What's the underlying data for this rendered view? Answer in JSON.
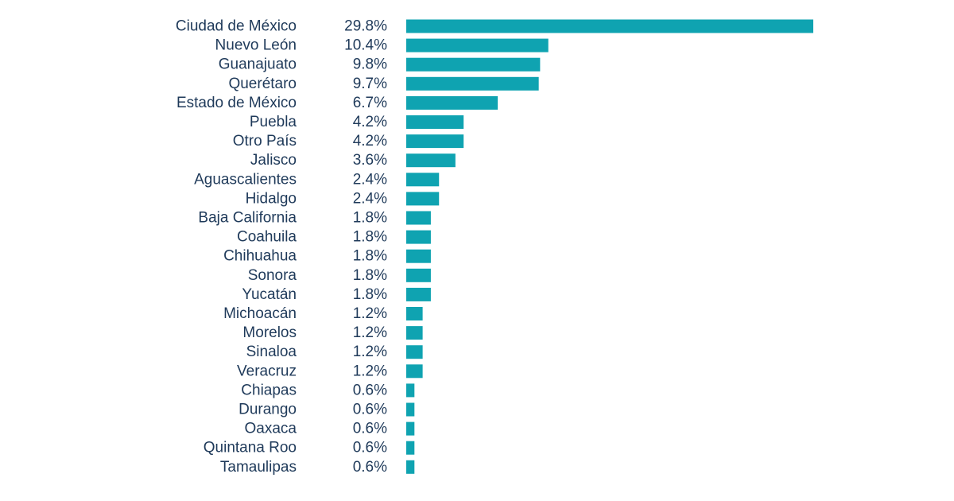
{
  "chart_data": {
    "type": "bar",
    "orientation": "horizontal",
    "categories": [
      "Ciudad de México",
      "Nuevo León",
      "Guanajuato",
      "Querétaro",
      "Estado de México",
      "Puebla",
      "Otro País",
      "Jalisco",
      "Aguascalientes",
      "Hidalgo",
      "Baja California",
      "Coahuila",
      "Chihuahua",
      "Sonora",
      "Yucatán",
      "Michoacán",
      "Morelos",
      "Sinaloa",
      "Veracruz",
      "Chiapas",
      "Durango",
      "Oaxaca",
      "Quintana Roo",
      "Tamaulipas"
    ],
    "values": [
      29.8,
      10.4,
      9.8,
      9.7,
      6.7,
      4.2,
      4.2,
      3.6,
      2.4,
      2.4,
      1.8,
      1.8,
      1.8,
      1.8,
      1.8,
      1.2,
      1.2,
      1.2,
      1.2,
      0.6,
      0.6,
      0.6,
      0.6,
      0.6
    ],
    "value_labels": [
      "29.8%",
      "10.4%",
      "9.8%",
      "9.7%",
      "6.7%",
      "4.2%",
      "4.2%",
      "3.6%",
      "2.4%",
      "2.4%",
      "1.8%",
      "1.8%",
      "1.8%",
      "1.8%",
      "1.8%",
      "1.2%",
      "1.2%",
      "1.2%",
      "1.2%",
      "0.6%",
      "0.6%",
      "0.6%",
      "0.6%",
      "0.6%"
    ],
    "unit": "%",
    "title": "",
    "xlabel": "",
    "ylabel": "",
    "xlim": [
      0,
      29.8
    ],
    "grid": false,
    "legend": "none",
    "bar_color": "#0fa3b1",
    "text_color": "#1f3a5a"
  }
}
